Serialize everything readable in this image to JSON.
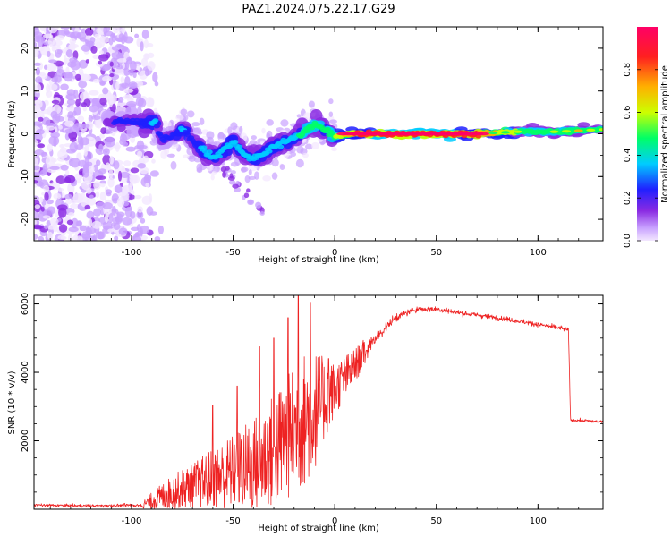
{
  "title": "PAZ1.2024.075.22.17.G29",
  "chart_data": [
    {
      "type": "heatmap",
      "xlabel": "Height of straight line (km)",
      "ylabel": "Frequency (Hz)",
      "xlim": [
        -148,
        132
      ],
      "ylim": [
        -25,
        25
      ],
      "x_ticks": [
        "-100",
        "-50",
        "0",
        "50",
        "100"
      ],
      "y_ticks": [
        "-20",
        "-10",
        "0",
        "10",
        "20"
      ],
      "colorbar": {
        "label": "Normalized spectral amplitude",
        "range": [
          0,
          1
        ],
        "ticks": [
          "0.0",
          "0.2",
          "0.4",
          "0.6",
          "0.8"
        ],
        "colormap": [
          "#f3e7ff",
          "#c9a2ff",
          "#8a2be2",
          "#2020ff",
          "#00ccff",
          "#00ff66",
          "#ccff00",
          "#ffb000",
          "#ff2020",
          "#ff0066"
        ]
      },
      "ridge": {
        "x": [
          -112,
          -100,
          -88,
          -85,
          -80,
          -75,
          -70,
          -65,
          -60,
          -55,
          -50,
          -45,
          -40,
          -35,
          -30,
          -25,
          -20,
          -15,
          -10,
          -8,
          -5,
          0,
          10,
          40,
          70,
          90,
          110,
          132
        ],
        "y": [
          3,
          3,
          2.5,
          -1.5,
          -0.5,
          1.0,
          -1.5,
          -3.5,
          -5.5,
          -4.0,
          -2.0,
          -4.5,
          -6.0,
          -4.5,
          -3.0,
          -2.0,
          -1.0,
          0.5,
          2.5,
          2.0,
          1.0,
          -0.5,
          0,
          0,
          0,
          0.5,
          0.5,
          1.0
        ],
        "amplitude": [
          0.25,
          0.35,
          0.4,
          0.3,
          0.35,
          0.4,
          0.35,
          0.4,
          0.45,
          0.45,
          0.4,
          0.45,
          0.4,
          0.4,
          0.4,
          0.45,
          0.45,
          0.55,
          0.6,
          0.55,
          0.5,
          0.6,
          0.85,
          0.9,
          0.85,
          0.6,
          0.6,
          0.6
        ]
      },
      "noise_region_x": [
        -148,
        -85
      ]
    },
    {
      "type": "line",
      "xlabel": "Height of straight line (km)",
      "ylabel": "SNR (10 * v/v)",
      "xlim": [
        -148,
        132
      ],
      "ylim": [
        0,
        6250
      ],
      "x_ticks": [
        "-100",
        "-50",
        "0",
        "50",
        "100"
      ],
      "y_ticks": [
        "2000",
        "4000",
        "6000"
      ],
      "color": "#ee2222",
      "envelope": {
        "x": [
          -148,
          -120,
          -95,
          -90,
          -80,
          -70,
          -60,
          -50,
          -40,
          -30,
          -20,
          -15,
          -10,
          -5,
          0,
          10,
          20,
          30,
          40,
          50,
          60,
          80,
          100,
          115,
          116,
          120,
          132
        ],
        "y": [
          120,
          100,
          120,
          250,
          500,
          700,
          900,
          1100,
          1300,
          1700,
          2300,
          2600,
          2900,
          3200,
          3500,
          4200,
          5000,
          5600,
          5850,
          5850,
          5750,
          5600,
          5400,
          5250,
          2600,
          2600,
          2550
        ],
        "spread": [
          80,
          70,
          90,
          250,
          500,
          650,
          900,
          1100,
          1400,
          1700,
          1900,
          2000,
          1800,
          1200,
          800,
          500,
          300,
          200,
          150,
          150,
          130,
          120,
          120,
          120,
          80,
          80,
          80
        ]
      },
      "peaks": {
        "x": [
          -60,
          -48,
          -37,
          -30,
          -23,
          -18,
          -12,
          -3
        ],
        "y": [
          3050,
          3600,
          4750,
          5000,
          5600,
          6250,
          6050,
          4400
        ]
      }
    }
  ]
}
